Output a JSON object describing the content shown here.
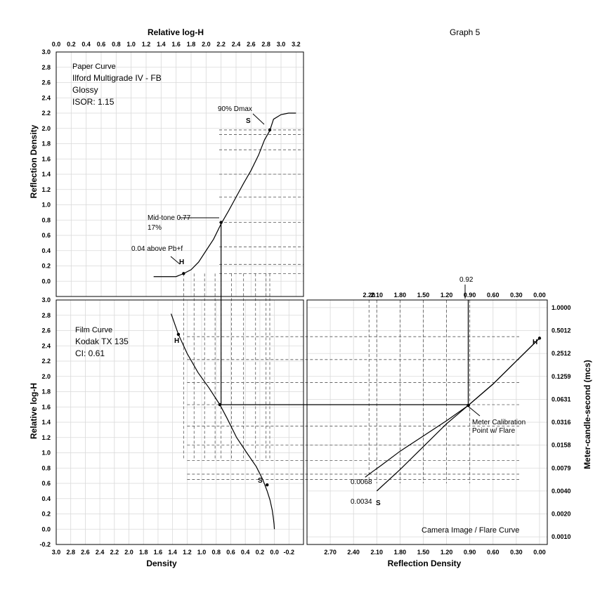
{
  "page_title": "Graph 5",
  "paper_panel": {
    "info_lines": [
      "Paper Curve",
      "Ilford Multigrade IV - FB",
      "Glossy",
      "ISOR: 1.15"
    ],
    "annotations": {
      "dmax": "90% Dmax",
      "midtone_line1": "Mid-tone 0.77",
      "midtone_line2": "17%",
      "above_base": "0.04 above Pb+f",
      "s_marker": "S",
      "h_marker": "H"
    }
  },
  "film_panel": {
    "info_lines": [
      "Film Curve",
      "Kodak TX 135",
      "CI: 0.61"
    ],
    "annotations": {
      "h_marker": "H",
      "s_marker": "S"
    }
  },
  "camera_panel": {
    "info_lines": [
      "Camera Image / Flare Curve"
    ],
    "annotations": {
      "top_value": "0.92",
      "meter_line1": "Meter Calibration",
      "meter_line2": "Point w/ Flare",
      "low_value_1": "0.0068",
      "low_value_2": "0.0034",
      "h_marker": "H",
      "s_marker": "S"
    }
  },
  "chart_data": [
    {
      "id": "paper",
      "type": "line",
      "xlabel": "Relative log-H",
      "ylabel": "Reflection Density",
      "xlim": [
        0.0,
        3.3
      ],
      "ylim": [
        -0.2,
        3.0
      ],
      "x_ticks": [
        "0.0",
        "0.2",
        "0.4",
        "0.6",
        "0.8",
        "1.0",
        "1.2",
        "1.4",
        "1.6",
        "1.8",
        "2.0",
        "2.2",
        "2.4",
        "2.6",
        "2.8",
        "3.0",
        "3.2"
      ],
      "y_ticks": [
        "0.0",
        "0.2",
        "0.4",
        "0.6",
        "0.8",
        "1.0",
        "1.2",
        "1.4",
        "1.6",
        "1.8",
        "2.0",
        "2.2",
        "2.4",
        "2.6",
        "2.8",
        "3.0"
      ],
      "grid": true,
      "series": [
        {
          "x": [
            1.3,
            1.6,
            1.7,
            1.8,
            1.9,
            2.0,
            2.1,
            2.2,
            2.3,
            2.4,
            2.5,
            2.6,
            2.7,
            2.78,
            2.85,
            2.9,
            3.0,
            3.1,
            3.2
          ],
          "y": [
            0.06,
            0.06,
            0.1,
            0.15,
            0.25,
            0.4,
            0.55,
            0.75,
            0.92,
            1.1,
            1.28,
            1.45,
            1.65,
            1.85,
            1.97,
            2.12,
            2.18,
            2.2,
            2.2
          ]
        }
      ],
      "key_points": [
        {
          "x": 1.7,
          "y": 0.1
        },
        {
          "x": 2.2,
          "y": 0.77
        },
        {
          "x": 2.85,
          "y": 1.98
        }
      ]
    },
    {
      "id": "film",
      "type": "line",
      "xlabel": "Density",
      "ylabel": "Relative log-H",
      "xlim": [
        3.0,
        -0.4
      ],
      "ylim": [
        -0.2,
        3.0
      ],
      "x_ticks": [
        "3.0",
        "2.8",
        "2.6",
        "2.4",
        "2.2",
        "2.0",
        "1.8",
        "1.6",
        "1.4",
        "1.2",
        "1.0",
        "0.8",
        "0.6",
        "0.4",
        "0.2",
        "0.0",
        "-0.2"
      ],
      "y_ticks": [
        "-0.2",
        "0.0",
        "0.2",
        "0.4",
        "0.6",
        "0.8",
        "1.0",
        "1.2",
        "1.4",
        "1.6",
        "1.8",
        "2.0",
        "2.2",
        "2.4",
        "2.6",
        "2.8",
        "3.0"
      ],
      "grid": true,
      "series": [
        {
          "x": [
            1.42,
            1.32,
            1.2,
            1.05,
            0.9,
            0.75,
            0.65,
            0.52,
            0.38,
            0.25,
            0.16,
            0.1,
            0.06,
            0.03,
            0.015,
            0.005,
            0.0
          ],
          "y": [
            2.82,
            2.55,
            2.3,
            2.05,
            1.85,
            1.63,
            1.45,
            1.2,
            1.0,
            0.82,
            0.65,
            0.5,
            0.38,
            0.25,
            0.15,
            0.07,
            0.0
          ]
        }
      ],
      "key_points": [
        {
          "x": 1.32,
          "y": 2.55
        },
        {
          "x": 0.75,
          "y": 1.63
        },
        {
          "x": 0.1,
          "y": 0.58
        }
      ]
    },
    {
      "id": "camera_flare",
      "type": "line",
      "xlabel": "Reflection Density",
      "ylabel": "Meter-candle-second (mcs)",
      "xlim": [
        3.0,
        -0.1
      ],
      "ylim": [
        -0.2,
        3.0
      ],
      "x_ticks_top": [
        "2.20",
        "2.10",
        "1.80",
        "1.50",
        "1.20",
        "0.90",
        "0.60",
        "0.30",
        "0.00"
      ],
      "x_ticks_bottom": [
        "2.70",
        "2.40",
        "2.10",
        "1.80",
        "1.50",
        "1.20",
        "0.90",
        "0.60",
        "0.30",
        "0.00"
      ],
      "y_ticks_right": [
        "0.0010",
        "0.0020",
        "0.0040",
        "0.0079",
        "0.0158",
        "0.0316",
        "0.0631",
        "0.1259",
        "0.2512",
        "0.5012",
        "1.0000"
      ],
      "grid": true,
      "series": [
        {
          "x": [
            0.0,
            0.3,
            0.6,
            0.92,
            1.2,
            1.5,
            1.8,
            2.1
          ],
          "y": [
            2.5,
            2.2,
            1.9,
            1.62,
            1.38,
            1.08,
            0.78,
            0.5
          ]
        },
        {
          "x": [
            0.0,
            0.3,
            0.6,
            0.92,
            1.2,
            1.5,
            1.8,
            2.05,
            2.2,
            2.25
          ],
          "y": [
            2.5,
            2.2,
            1.9,
            1.62,
            1.42,
            1.22,
            1.02,
            0.83,
            0.72,
            0.68
          ]
        }
      ],
      "key_points": [
        {
          "x": 0.0,
          "y": 2.5
        },
        {
          "x": 0.92,
          "y": 1.62
        }
      ]
    }
  ]
}
